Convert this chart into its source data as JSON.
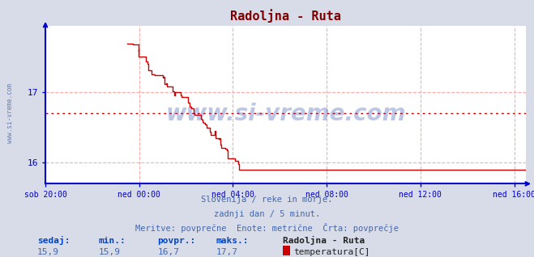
{
  "title": "Radoljna - Ruta",
  "title_color": "#800000",
  "bg_color": "#d8dce8",
  "plot_bg_color": "#ffffff",
  "grid_color": "#ffaaaa",
  "grid_linestyle": "--",
  "axis_color": "#0000cc",
  "text_color": "#4466aa",
  "line_color": "#cc0000",
  "avg_line_color": "#cc0000",
  "ylim": [
    15.7,
    17.95
  ],
  "yticks": [
    16,
    17
  ],
  "x_tick_labels": [
    "sob 20:00",
    "ned 00:00",
    "ned 04:00",
    "ned 08:00",
    "ned 12:00",
    "ned 16:00"
  ],
  "x_tick_positions": [
    0,
    4,
    8,
    12,
    16,
    20
  ],
  "xlim": [
    0,
    20.5
  ],
  "avg_value": 16.7,
  "sedaj": "15,9",
  "min_val": "15,9",
  "povpr_val": "16,7",
  "maks_val": "17,7",
  "footer_line1": "Slovenija / reke in morje.",
  "footer_line2": "zadnji dan / 5 minut.",
  "footer_line3": "Meritve: povprečne  Enote: metrične  Črta: povprečje",
  "label_sedaj": "sedaj:",
  "label_min": "min.:",
  "label_povpr": "povpr.:",
  "label_maks": "maks.:",
  "label_station": "Radoljna - Ruta",
  "label_series": "temperatura[C]",
  "watermark": "www.si-vreme.com",
  "left_label": "www.si-vreme.com",
  "stair_start_x": 3.5,
  "stair_end_x": 8.7,
  "stair_start_y": 17.7,
  "stair_end_y": 15.9,
  "n_steps": 55
}
